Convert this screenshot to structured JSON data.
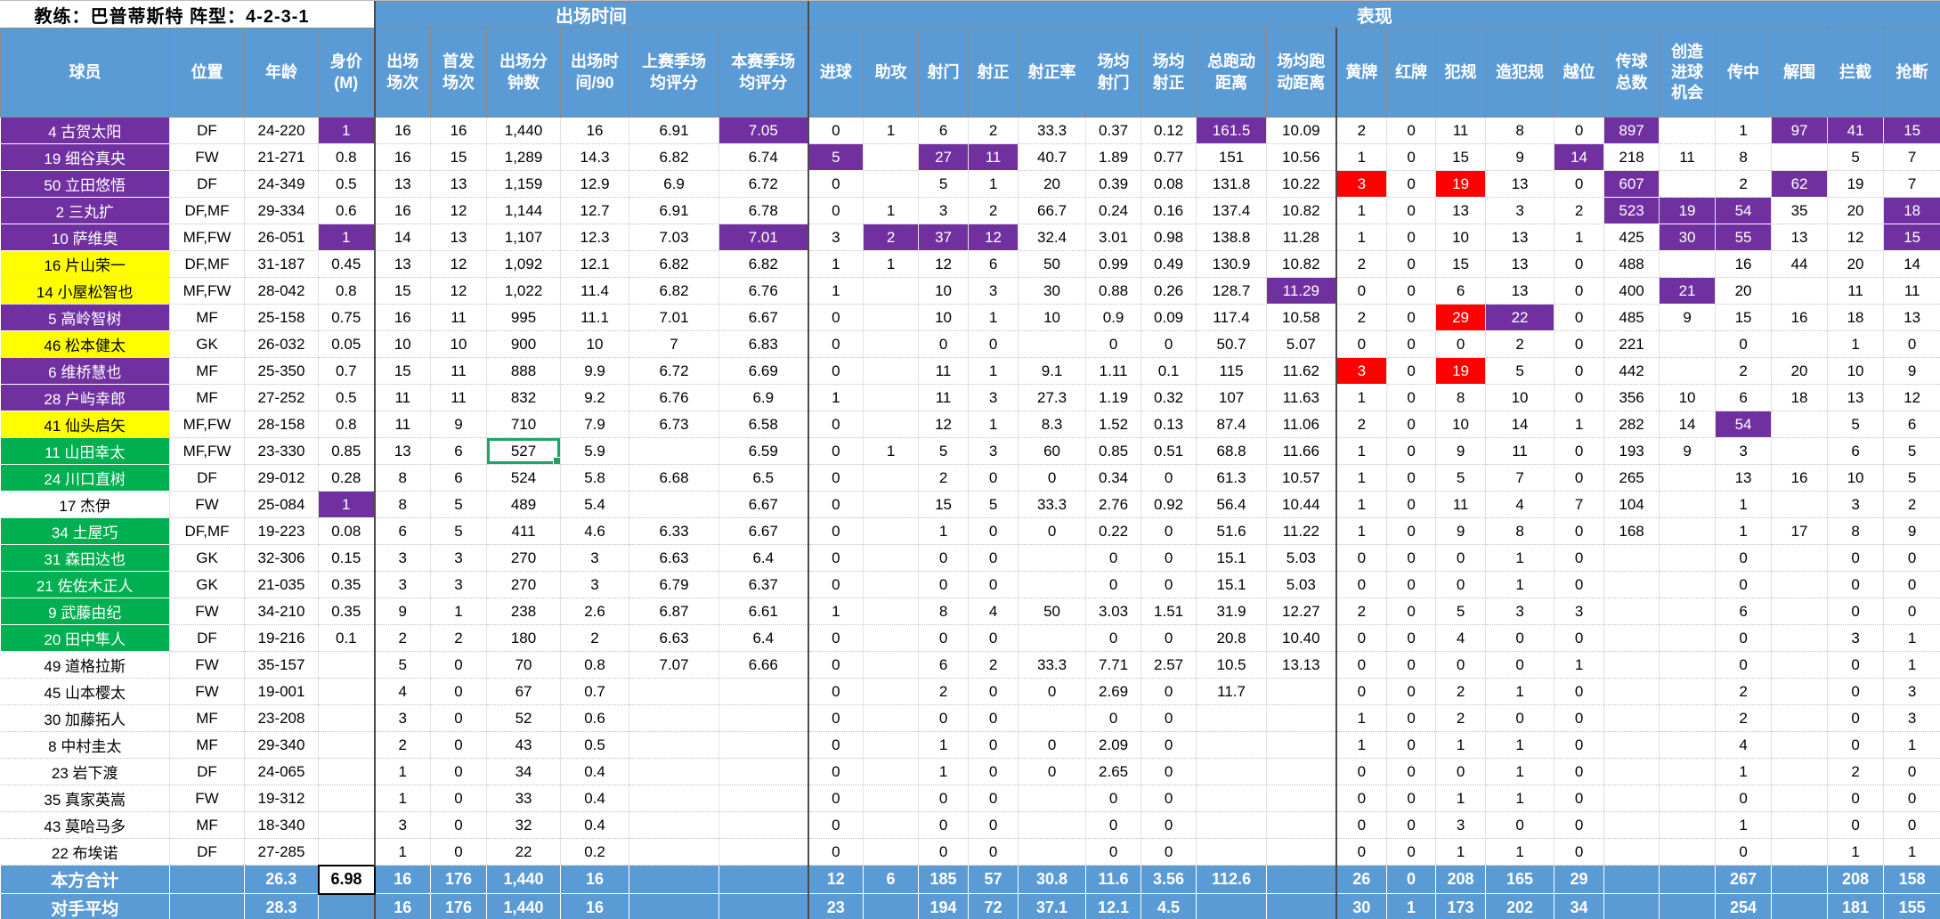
{
  "sheet": {
    "coach_line": "教练：巴普蒂斯特  阵型：4-2-3-1",
    "groups": {
      "playtime": "出场时间",
      "performance": "表现"
    }
  },
  "colors": {
    "header_blue": "#5B9BD5",
    "purple": "#7030A0",
    "red": "#FF0000",
    "yellow": "#FFFF00",
    "green": "#00B050",
    "selection_green": "#21A366"
  },
  "columns": [
    "球员",
    "位置",
    "年龄",
    "身价\n(M)",
    "出场\n场次",
    "首发\n场次",
    "出场分\n钟数",
    "出场时\n间/90",
    "上赛季场\n均评分",
    "本赛季场\n均评分",
    "进球",
    "助攻",
    "射门",
    "射正",
    "射正率",
    "场均\n射门",
    "场均\n射正",
    "总跑动\n距离",
    "场均跑\n动距离",
    "黄牌",
    "红牌",
    "犯规",
    "造犯规",
    "越位",
    "传球\n总数",
    "创造\n进球\n机会",
    "传中",
    "解围",
    "拦截",
    "抢断"
  ],
  "selection": {
    "row": 12,
    "col": 6
  },
  "players": [
    {
      "name_bg": "purple",
      "highlights": {
        "3": "purple",
        "9": "purple",
        "17": "purple",
        "24": "purple",
        "27": "purple",
        "28": "purple",
        "29": "purple"
      },
      "cells": [
        "4 古贺太阳",
        "DF",
        "24-220",
        "1",
        "16",
        "16",
        "1,440",
        "16",
        "6.91",
        "7.05",
        "0",
        "1",
        "6",
        "2",
        "33.3",
        "0.37",
        "0.12",
        "161.5",
        "10.09",
        "2",
        "0",
        "11",
        "8",
        "0",
        "897",
        "",
        "1",
        "97",
        "41",
        "15"
      ]
    },
    {
      "name_bg": "purple",
      "highlights": {
        "10": "purple",
        "12": "purple",
        "13": "purple",
        "23": "purple"
      },
      "cells": [
        "19 细谷真央",
        "FW",
        "21-271",
        "0.8",
        "16",
        "15",
        "1,289",
        "14.3",
        "6.82",
        "6.74",
        "5",
        "",
        "27",
        "11",
        "40.7",
        "1.89",
        "0.77",
        "151",
        "10.56",
        "1",
        "0",
        "15",
        "9",
        "14",
        "218",
        "11",
        "8",
        "",
        "5",
        "7"
      ]
    },
    {
      "name_bg": "purple",
      "highlights": {
        "19": "red",
        "21": "red",
        "24": "purple",
        "27": "purple"
      },
      "cells": [
        "50 立田悠悟",
        "DF",
        "24-349",
        "0.5",
        "13",
        "13",
        "1,159",
        "12.9",
        "6.9",
        "6.72",
        "0",
        "",
        "5",
        "1",
        "20",
        "0.39",
        "0.08",
        "131.8",
        "10.22",
        "3",
        "0",
        "19",
        "13",
        "0",
        "607",
        "",
        "2",
        "62",
        "19",
        "7"
      ]
    },
    {
      "name_bg": "purple",
      "highlights": {
        "24": "purple",
        "25": "purple",
        "26": "purple",
        "29": "purple"
      },
      "cells": [
        "2 三丸扩",
        "DF,MF",
        "29-334",
        "0.6",
        "16",
        "12",
        "1,144",
        "12.7",
        "6.91",
        "6.78",
        "0",
        "1",
        "3",
        "2",
        "66.7",
        "0.24",
        "0.16",
        "137.4",
        "10.82",
        "1",
        "0",
        "13",
        "3",
        "2",
        "523",
        "19",
        "54",
        "35",
        "20",
        "18"
      ]
    },
    {
      "name_bg": "purple",
      "highlights": {
        "3": "purple",
        "9": "purple",
        "11": "purple",
        "12": "purple",
        "13": "purple",
        "25": "purple",
        "26": "purple",
        "29": "purple"
      },
      "cells": [
        "10 萨维奥",
        "MF,FW",
        "26-051",
        "1",
        "14",
        "13",
        "1,107",
        "12.3",
        "7.03",
        "7.01",
        "3",
        "2",
        "37",
        "12",
        "32.4",
        "3.01",
        "0.98",
        "138.8",
        "11.28",
        "1",
        "0",
        "10",
        "13",
        "1",
        "425",
        "30",
        "55",
        "13",
        "12",
        "15"
      ]
    },
    {
      "name_bg": "yellow",
      "highlights": {},
      "cells": [
        "16 片山荣一",
        "DF,MF",
        "31-187",
        "0.45",
        "13",
        "12",
        "1,092",
        "12.1",
        "6.82",
        "6.82",
        "1",
        "1",
        "12",
        "6",
        "50",
        "0.99",
        "0.49",
        "130.9",
        "10.82",
        "2",
        "0",
        "15",
        "13",
        "0",
        "488",
        "",
        "16",
        "44",
        "20",
        "14"
      ]
    },
    {
      "name_bg": "yellow",
      "highlights": {
        "18": "purple",
        "25": "purple"
      },
      "cells": [
        "14 小屋松智也",
        "MF,FW",
        "28-042",
        "0.8",
        "15",
        "12",
        "1,022",
        "11.4",
        "6.82",
        "6.76",
        "1",
        "",
        "10",
        "3",
        "30",
        "0.88",
        "0.26",
        "128.7",
        "11.29",
        "0",
        "0",
        "6",
        "13",
        "0",
        "400",
        "21",
        "20",
        "",
        "11",
        "11"
      ]
    },
    {
      "name_bg": "purple",
      "highlights": {
        "21": "red",
        "22": "purple"
      },
      "cells": [
        "5 高岭智树",
        "MF",
        "25-158",
        "0.75",
        "16",
        "11",
        "995",
        "11.1",
        "7.01",
        "6.67",
        "0",
        "",
        "10",
        "1",
        "10",
        "0.9",
        "0.09",
        "117.4",
        "10.58",
        "2",
        "0",
        "29",
        "22",
        "0",
        "485",
        "9",
        "15",
        "16",
        "18",
        "13"
      ]
    },
    {
      "name_bg": "yellow",
      "highlights": {},
      "cells": [
        "46 松本健太",
        "GK",
        "26-032",
        "0.05",
        "10",
        "10",
        "900",
        "10",
        "7",
        "6.83",
        "0",
        "",
        "0",
        "0",
        "",
        "0",
        "0",
        "50.7",
        "5.07",
        "0",
        "0",
        "0",
        "2",
        "0",
        "221",
        "",
        "0",
        "",
        "1",
        "0"
      ]
    },
    {
      "name_bg": "purple",
      "highlights": {
        "19": "red",
        "21": "red"
      },
      "cells": [
        "6 维桥慧也",
        "MF",
        "25-350",
        "0.7",
        "15",
        "11",
        "888",
        "9.9",
        "6.72",
        "6.69",
        "0",
        "",
        "11",
        "1",
        "9.1",
        "1.11",
        "0.1",
        "115",
        "11.62",
        "3",
        "0",
        "19",
        "5",
        "0",
        "442",
        "",
        "2",
        "20",
        "10",
        "9"
      ]
    },
    {
      "name_bg": "purple",
      "highlights": {},
      "cells": [
        "28 户屿幸郎",
        "MF",
        "27-252",
        "0.5",
        "11",
        "11",
        "832",
        "9.2",
        "6.76",
        "6.9",
        "1",
        "",
        "11",
        "3",
        "27.3",
        "1.19",
        "0.32",
        "107",
        "11.63",
        "1",
        "0",
        "8",
        "10",
        "0",
        "356",
        "10",
        "6",
        "18",
        "13",
        "12"
      ]
    },
    {
      "name_bg": "yellow",
      "highlights": {
        "26": "purple"
      },
      "cells": [
        "41 仙头启矢",
        "MF,FW",
        "28-158",
        "0.8",
        "11",
        "9",
        "710",
        "7.9",
        "6.73",
        "6.58",
        "0",
        "",
        "12",
        "1",
        "8.3",
        "1.52",
        "0.13",
        "87.4",
        "11.06",
        "2",
        "0",
        "10",
        "14",
        "1",
        "282",
        "14",
        "54",
        "",
        "5",
        "6"
      ]
    },
    {
      "name_bg": "green",
      "highlights": {},
      "cells": [
        "11 山田幸太",
        "MF,FW",
        "23-330",
        "0.85",
        "13",
        "6",
        "527",
        "5.9",
        "",
        "6.59",
        "0",
        "1",
        "5",
        "3",
        "60",
        "0.85",
        "0.51",
        "68.8",
        "11.66",
        "1",
        "0",
        "9",
        "11",
        "0",
        "193",
        "9",
        "3",
        "",
        "6",
        "5"
      ]
    },
    {
      "name_bg": "green",
      "highlights": {},
      "cells": [
        "24 川口直树",
        "DF",
        "29-012",
        "0.28",
        "8",
        "6",
        "524",
        "5.8",
        "6.68",
        "6.5",
        "0",
        "",
        "2",
        "0",
        "0",
        "0.34",
        "0",
        "61.3",
        "10.57",
        "1",
        "0",
        "5",
        "7",
        "0",
        "265",
        "",
        "13",
        "16",
        "10",
        "5"
      ]
    },
    {
      "name_bg": "white",
      "highlights": {
        "3": "purple"
      },
      "cells": [
        "17 杰伊",
        "FW",
        "25-084",
        "1",
        "8",
        "5",
        "489",
        "5.4",
        "",
        "6.67",
        "0",
        "",
        "15",
        "5",
        "33.3",
        "2.76",
        "0.92",
        "56.4",
        "10.44",
        "1",
        "0",
        "11",
        "4",
        "7",
        "104",
        "",
        "1",
        "",
        "3",
        "2"
      ]
    },
    {
      "name_bg": "green",
      "highlights": {},
      "cells": [
        "34 土屋巧",
        "DF,MF",
        "19-223",
        "0.08",
        "6",
        "5",
        "411",
        "4.6",
        "6.33",
        "6.67",
        "0",
        "",
        "1",
        "0",
        "0",
        "0.22",
        "0",
        "51.6",
        "11.22",
        "1",
        "0",
        "9",
        "8",
        "0",
        "168",
        "",
        "1",
        "17",
        "8",
        "9"
      ]
    },
    {
      "name_bg": "green",
      "highlights": {},
      "cells": [
        "31 森田达也",
        "GK",
        "32-306",
        "0.15",
        "3",
        "3",
        "270",
        "3",
        "6.63",
        "6.4",
        "0",
        "",
        "0",
        "0",
        "",
        "0",
        "0",
        "15.1",
        "5.03",
        "0",
        "0",
        "0",
        "1",
        "0",
        "",
        "",
        "0",
        "",
        "0",
        "0"
      ]
    },
    {
      "name_bg": "green",
      "highlights": {},
      "cells": [
        "21 佐佐木正人",
        "GK",
        "21-035",
        "0.35",
        "3",
        "3",
        "270",
        "3",
        "6.79",
        "6.37",
        "0",
        "",
        "0",
        "0",
        "",
        "0",
        "0",
        "15.1",
        "5.03",
        "0",
        "0",
        "0",
        "1",
        "0",
        "",
        "",
        "0",
        "",
        "0",
        "0"
      ]
    },
    {
      "name_bg": "green",
      "highlights": {},
      "cells": [
        "9 武藤由纪",
        "FW",
        "34-210",
        "0.35",
        "9",
        "1",
        "238",
        "2.6",
        "6.87",
        "6.61",
        "1",
        "",
        "8",
        "4",
        "50",
        "3.03",
        "1.51",
        "31.9",
        "12.27",
        "2",
        "0",
        "5",
        "3",
        "3",
        "",
        "",
        "6",
        "",
        "0",
        "0"
      ]
    },
    {
      "name_bg": "green",
      "highlights": {},
      "cells": [
        "20 田中隼人",
        "DF",
        "19-216",
        "0.1",
        "2",
        "2",
        "180",
        "2",
        "6.63",
        "6.4",
        "0",
        "",
        "0",
        "0",
        "",
        "0",
        "0",
        "20.8",
        "10.40",
        "0",
        "0",
        "4",
        "0",
        "0",
        "",
        "",
        "0",
        "",
        "3",
        "1"
      ]
    },
    {
      "name_bg": "white",
      "highlights": {},
      "cells": [
        "49 道格拉斯",
        "FW",
        "35-157",
        "",
        "5",
        "0",
        "70",
        "0.8",
        "7.07",
        "6.66",
        "0",
        "",
        "6",
        "2",
        "33.3",
        "7.71",
        "2.57",
        "10.5",
        "13.13",
        "0",
        "0",
        "0",
        "0",
        "1",
        "",
        "",
        "0",
        "",
        "0",
        "1"
      ]
    },
    {
      "name_bg": "white",
      "highlights": {},
      "cells": [
        "45 山本樱太",
        "FW",
        "19-001",
        "",
        "4",
        "0",
        "67",
        "0.7",
        "",
        "",
        "0",
        "",
        "2",
        "0",
        "0",
        "2.69",
        "0",
        "11.7",
        "",
        "0",
        "0",
        "2",
        "1",
        "0",
        "",
        "",
        "2",
        "",
        "0",
        "3"
      ]
    },
    {
      "name_bg": "white",
      "highlights": {},
      "cells": [
        "30 加藤拓人",
        "MF",
        "23-208",
        "",
        "3",
        "0",
        "52",
        "0.6",
        "",
        "",
        "0",
        "",
        "0",
        "0",
        "",
        "0",
        "0",
        "",
        "",
        "1",
        "0",
        "2",
        "0",
        "0",
        "",
        "",
        "2",
        "",
        "0",
        "3"
      ]
    },
    {
      "name_bg": "white",
      "highlights": {},
      "cells": [
        "8 中村圭太",
        "MF",
        "29-340",
        "",
        "2",
        "0",
        "43",
        "0.5",
        "",
        "",
        "0",
        "",
        "1",
        "0",
        "0",
        "2.09",
        "0",
        "",
        "",
        "1",
        "0",
        "1",
        "1",
        "0",
        "",
        "",
        "4",
        "",
        "0",
        "1"
      ]
    },
    {
      "name_bg": "white",
      "highlights": {},
      "cells": [
        "23 岩下渡",
        "DF",
        "24-065",
        "",
        "1",
        "0",
        "34",
        "0.4",
        "",
        "",
        "0",
        "",
        "1",
        "0",
        "0",
        "2.65",
        "0",
        "",
        "",
        "0",
        "0",
        "0",
        "1",
        "0",
        "",
        "",
        "1",
        "",
        "2",
        "0"
      ]
    },
    {
      "name_bg": "white",
      "highlights": {},
      "cells": [
        "35 真家英嵩",
        "FW",
        "19-312",
        "",
        "1",
        "0",
        "33",
        "0.4",
        "",
        "",
        "0",
        "",
        "0",
        "0",
        "",
        "0",
        "0",
        "",
        "",
        "0",
        "0",
        "1",
        "1",
        "0",
        "",
        "",
        "0",
        "",
        "0",
        "0"
      ]
    },
    {
      "name_bg": "white",
      "highlights": {},
      "cells": [
        "43 莫哈马多",
        "MF",
        "18-340",
        "",
        "3",
        "0",
        "32",
        "0.4",
        "",
        "",
        "0",
        "",
        "0",
        "0",
        "",
        "0",
        "0",
        "",
        "",
        "0",
        "0",
        "3",
        "0",
        "0",
        "",
        "",
        "1",
        "",
        "0",
        "0"
      ]
    },
    {
      "name_bg": "white",
      "highlights": {},
      "cells": [
        "22 布埃诺",
        "DF",
        "27-285",
        "",
        "1",
        "0",
        "22",
        "0.2",
        "",
        "",
        "0",
        "",
        "0",
        "0",
        "",
        "0",
        "0",
        "",
        "",
        "0",
        "0",
        "1",
        "1",
        "0",
        "",
        "",
        "0",
        "",
        "1",
        "1"
      ]
    }
  ],
  "totals": [
    {
      "special": {
        "3": "white_box"
      },
      "cells": [
        "本方合计",
        "",
        "26.3",
        "6.98",
        "16",
        "176",
        "1,440",
        "16",
        "",
        "",
        "12",
        "6",
        "185",
        "57",
        "30.8",
        "11.6",
        "3.56",
        "112.6",
        "",
        "26",
        "0",
        "208",
        "165",
        "29",
        "",
        "",
        "267",
        "",
        "208",
        "158"
      ]
    },
    {
      "special": {},
      "cells": [
        "对手平均",
        "",
        "28.3",
        "",
        "16",
        "176",
        "1,440",
        "16",
        "",
        "",
        "23",
        "",
        "194",
        "72",
        "37.1",
        "12.1",
        "4.5",
        "",
        "",
        "30",
        "1",
        "173",
        "202",
        "34",
        "",
        "",
        "254",
        "",
        "181",
        "155"
      ]
    }
  ]
}
